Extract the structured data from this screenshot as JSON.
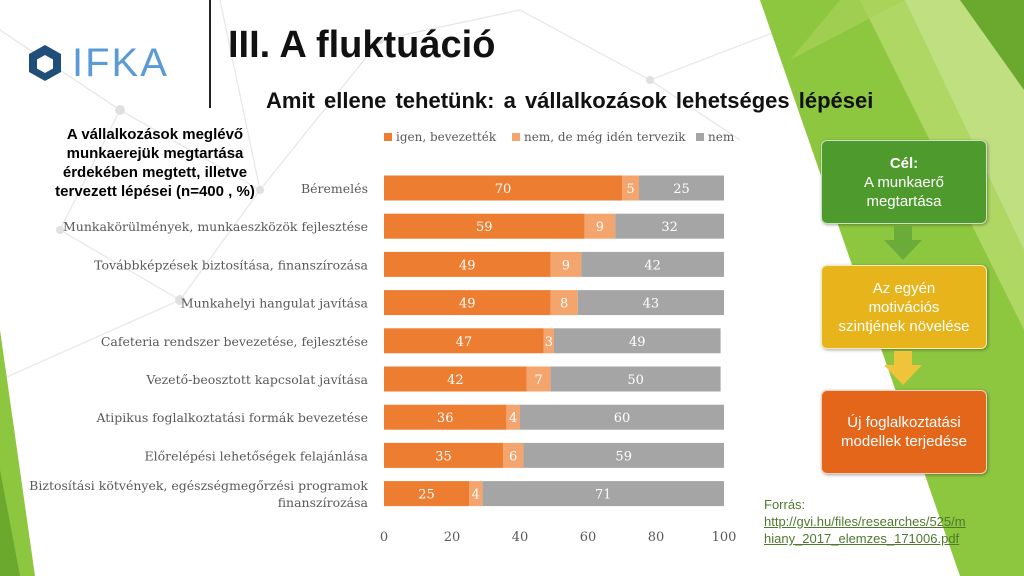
{
  "header": {
    "logo_text": "IFKA",
    "title": "III. A fluktuáció",
    "subtitle": "Amit ellene tehetünk: a vállalkozások lehetséges lépései"
  },
  "chart_title_lines": [
    "A vállalkozások meglévő",
    "munkaerejük megtartása",
    "érdekében megtett, illetve",
    "tervezett lépései (n=400 , %)"
  ],
  "chart_data": {
    "type": "bar",
    "orientation": "horizontal",
    "stacked": true,
    "categories": [
      [
        "Béremelés"
      ],
      [
        "Munkakörülmények, munkaeszközök fejlesztése"
      ],
      [
        "Továbbképzések biztosítása, finanszírozása"
      ],
      [
        "Munkahelyi hangulat javítása"
      ],
      [
        "Cafeteria rendszer bevezetése, fejlesztése"
      ],
      [
        "Vezető-beosztott kapcsolat javítása"
      ],
      [
        "Atipikus foglalkoztatási formák bevezetése"
      ],
      [
        "Előrelépési lehetőségek felajánlása"
      ],
      [
        "Biztosítási kötvények, egészségmegőrzési programok",
        "finanszírozása"
      ]
    ],
    "series": [
      {
        "name": "igen, bevezették",
        "color": "#ed7d31",
        "values": [
          70,
          59,
          49,
          49,
          47,
          42,
          36,
          35,
          25
        ]
      },
      {
        "name": "nem, de még idén tervezik",
        "color": "#f4a56e",
        "values": [
          5,
          9,
          9,
          8,
          3,
          7,
          4,
          6,
          4
        ]
      },
      {
        "name": "nem",
        "color": "#a5a5a5",
        "values": [
          25,
          32,
          42,
          43,
          49,
          50,
          60,
          59,
          71
        ]
      }
    ],
    "xlim": [
      0,
      100
    ],
    "xticks": [
      0,
      20,
      40,
      60,
      80,
      100
    ],
    "legend_position": "top",
    "grid": false
  },
  "flow": {
    "box1_title": "Cél:",
    "box1_text": [
      "A munkaerő",
      "megtartása"
    ],
    "box2_text": [
      "Az egyén",
      "motivációs",
      "szintjének növelése"
    ],
    "box3_text": [
      "Új foglalkoztatási",
      "modellek terjedése"
    ]
  },
  "source": {
    "label": "Forrás:",
    "link_lines": [
      "http://gvi.hu/files/researches/525/m",
      "hiany_2017_elemzes_171006.pdf"
    ]
  },
  "colors": {
    "green_deco": "#8dc63f",
    "lime_deco": "#c8e06b"
  }
}
